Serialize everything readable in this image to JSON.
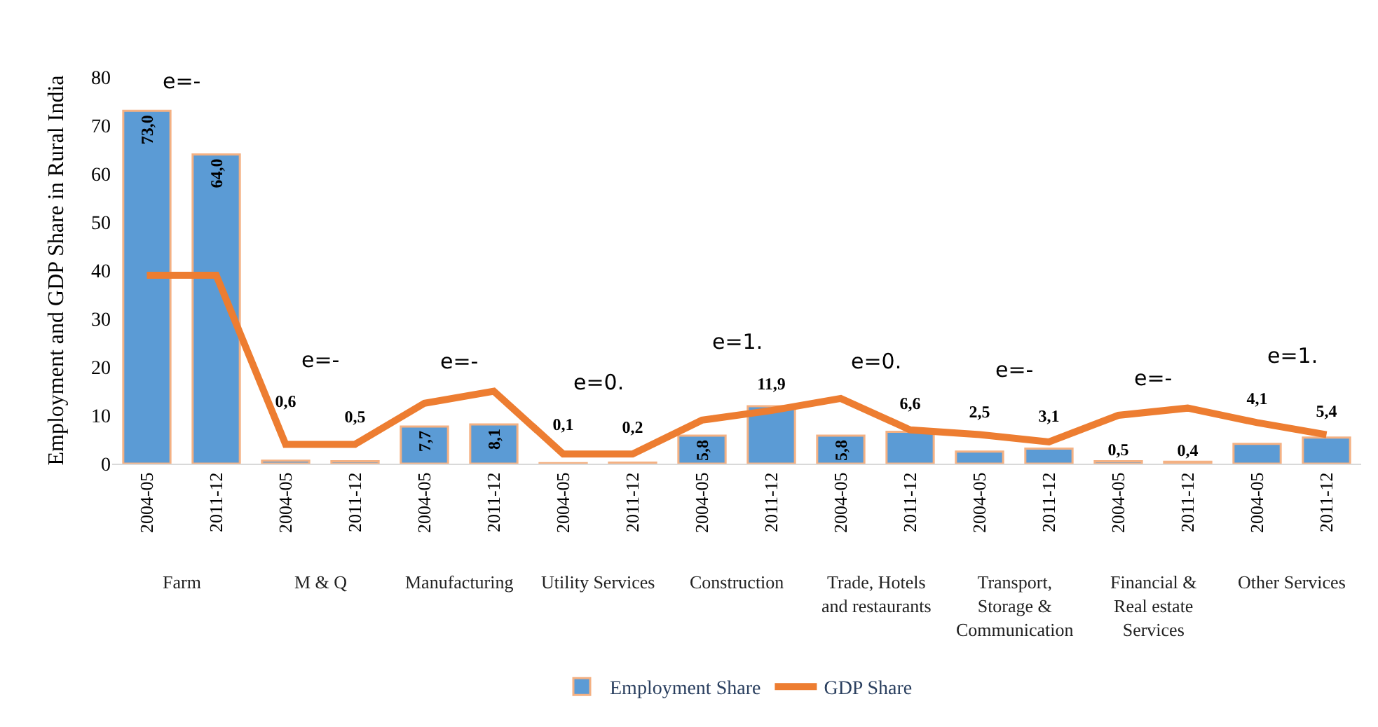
{
  "chart_data": {
    "type": "bar",
    "ylabel": "Employment and GDP Share in Rural India",
    "categories": [
      "2004-05",
      "2011-12",
      "2004-05",
      "2011-12",
      "2004-05",
      "2011-12",
      "2004-05",
      "2011-12",
      "2004-05",
      "2011-12",
      "2004-05",
      "2011-12",
      "2004-05",
      "2011-12",
      "2004-05",
      "2011-12",
      "2004-05",
      "2011-12"
    ],
    "series": [
      {
        "name": "Employment Share",
        "color": "#5b9bd5",
        "values": [
          73.0,
          64.0,
          0.6,
          0.5,
          7.7,
          8.1,
          0.1,
          0.2,
          5.8,
          11.9,
          5.8,
          6.6,
          2.5,
          3.1,
          0.5,
          0.4,
          4.1,
          5.4
        ],
        "value_labels": [
          "73,0",
          "64,0",
          "0,6",
          "0,5",
          "7,7",
          "8,1",
          "0,1",
          "0,2",
          "5,8",
          "11,9",
          "5,8",
          "6,6",
          "2,5",
          "3,1",
          "0,5",
          "0,4",
          "4,1",
          "5,4"
        ]
      },
      {
        "name": "GDP Share",
        "type": "line",
        "color": "#ed7d31",
        "values": [
          39,
          39,
          4,
          4,
          12.5,
          15,
          2,
          2,
          9,
          11,
          13.5,
          7,
          6,
          4.5,
          10,
          11.5,
          8.5,
          6
        ]
      }
    ],
    "annotations": [
      "Farm",
      "M & Q",
      "Manufacturing",
      "Utility Services",
      "Construction",
      "Trade, Hotels\nand restaurants",
      "Transport,\nStorage &\nCommunication",
      "Financial &\nReal estate\nServices",
      "Other Services",
      "e=-",
      "e=-",
      "e=-",
      "e=0.",
      "e=1.",
      "e=0.",
      "e=-",
      "e=-",
      "e=1."
    ],
    "ylim": [
      0,
      80
    ],
    "yticks": [
      0,
      10,
      20,
      30,
      40,
      50,
      60,
      70,
      80
    ],
    "grid": false,
    "legend": "bottom",
    "marker": "none",
    "line_style": "solid"
  }
}
